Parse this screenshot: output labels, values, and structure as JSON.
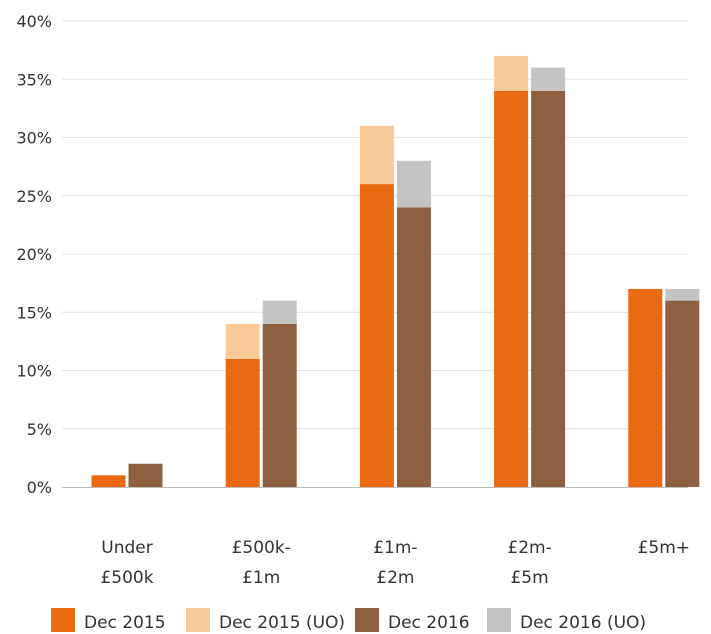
{
  "chart_data": {
    "type": "bar",
    "stacked_pairs": true,
    "categories": [
      [
        "Under",
        "£500k"
      ],
      [
        "£500k-",
        "£1m"
      ],
      [
        "£1m-",
        "£2m"
      ],
      [
        "£2m-",
        "£5m"
      ],
      [
        "£5m+"
      ]
    ],
    "series": [
      {
        "name": "Dec 2015",
        "values": [
          1,
          11,
          26,
          34,
          17
        ],
        "color": "#e96a10"
      },
      {
        "name": "Dec 2015 (UO)",
        "values": [
          0,
          3,
          5,
          3,
          0
        ],
        "color": "#f9c998"
      },
      {
        "name": "Dec 2016",
        "values": [
          2,
          14,
          24,
          34,
          16
        ],
        "color": "#8e6041"
      },
      {
        "name": "Dec 2016 (UO)",
        "values": [
          0,
          2,
          4,
          2,
          1
        ],
        "color": "#c3c3c3"
      }
    ],
    "stacks": [
      {
        "base": "Dec 2015",
        "top": "Dec 2015 (UO)"
      },
      {
        "base": "Dec 2016",
        "top": "Dec 2016 (UO)"
      }
    ],
    "ylim": [
      0,
      40
    ],
    "yticks": [
      0,
      5,
      10,
      15,
      20,
      25,
      30,
      35,
      40
    ],
    "ytick_labels": [
      "0%",
      "5%",
      "10%",
      "15%",
      "20%",
      "25%",
      "30%",
      "35%",
      "40%"
    ],
    "grid": true,
    "legend": "bottom",
    "title": "",
    "xlabel": "",
    "ylabel": ""
  }
}
